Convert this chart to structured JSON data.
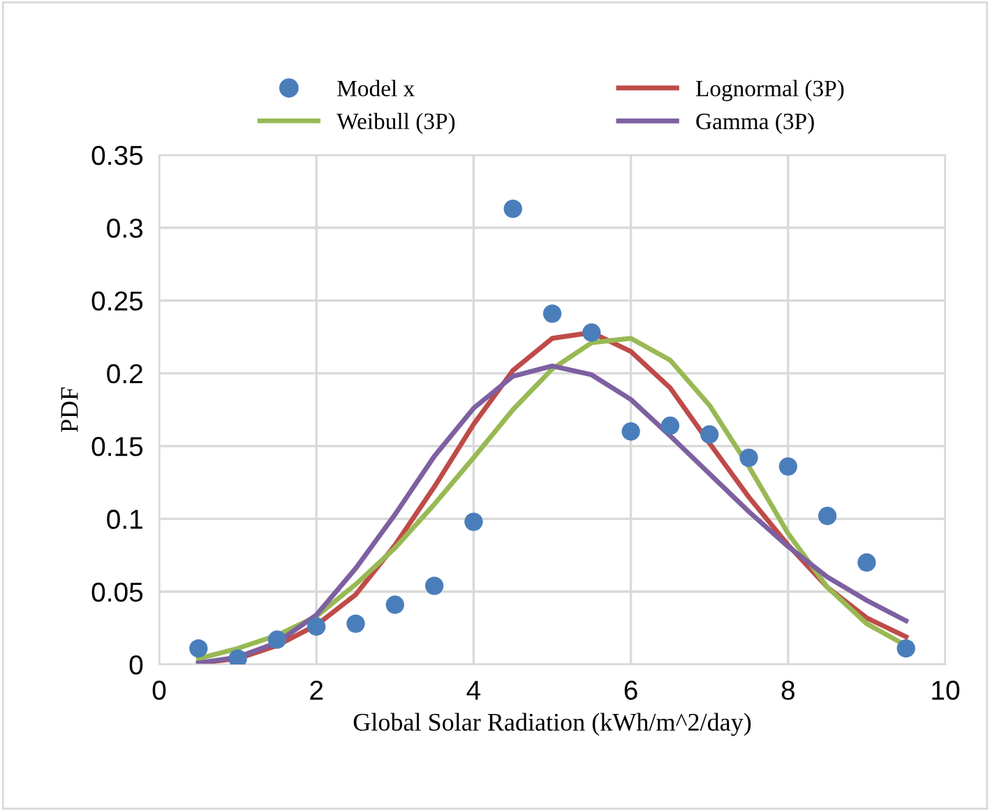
{
  "chart_data": {
    "type": "line",
    "xlabel": "Global Solar Radiation (kWh/m^2/day)",
    "ylabel": "PDF",
    "x": [
      0.5,
      1,
      1.5,
      2,
      2.5,
      3,
      3.5,
      4,
      4.5,
      5,
      5.5,
      6,
      6.5,
      7,
      7.5,
      8,
      8.5,
      9,
      9.5
    ],
    "series": [
      {
        "name": "Model x",
        "type": "scatter",
        "color": "#4a7ebb",
        "marker": "circle",
        "values": [
          0.011,
          0.004,
          0.017,
          0.026,
          0.028,
          0.041,
          0.054,
          0.098,
          0.313,
          0.241,
          0.228,
          0.16,
          0.164,
          0.158,
          0.142,
          0.136,
          0.102,
          0.07,
          0.011
        ]
      },
      {
        "name": "Lognormal (3P)",
        "color": "#be4b48",
        "values": [
          0.001,
          0.004,
          0.013,
          0.027,
          0.048,
          0.082,
          0.122,
          0.165,
          0.202,
          0.224,
          0.228,
          0.215,
          0.19,
          0.152,
          0.115,
          0.082,
          0.053,
          0.032,
          0.019
        ]
      },
      {
        "name": "Weibull (3P)",
        "color": "#98b954",
        "values": [
          0.004,
          0.011,
          0.02,
          0.033,
          0.055,
          0.08,
          0.11,
          0.142,
          0.175,
          0.203,
          0.221,
          0.224,
          0.209,
          0.178,
          0.136,
          0.09,
          0.053,
          0.028,
          0.013
        ]
      },
      {
        "name": "Gamma (3P)",
        "color": "#7d60a0",
        "values": [
          0.001,
          0.005,
          0.015,
          0.034,
          0.066,
          0.103,
          0.143,
          0.176,
          0.198,
          0.205,
          0.199,
          0.182,
          0.157,
          0.131,
          0.105,
          0.081,
          0.06,
          0.044,
          0.03
        ]
      }
    ],
    "xlim": [
      0,
      10
    ],
    "xticks": [
      0,
      2,
      4,
      6,
      8,
      10
    ],
    "ylim": [
      0,
      0.35
    ],
    "yticks": [
      {
        "value": 0,
        "label": "0"
      },
      0.05,
      {
        "value": 0.1,
        "label": "0.1"
      },
      0.15,
      {
        "value": 0.2,
        "label": "0.2"
      },
      0.25,
      {
        "value": 0.3,
        "label": "0.3"
      },
      0.35
    ],
    "grid": true,
    "legend": "top",
    "line_style": "solid"
  }
}
